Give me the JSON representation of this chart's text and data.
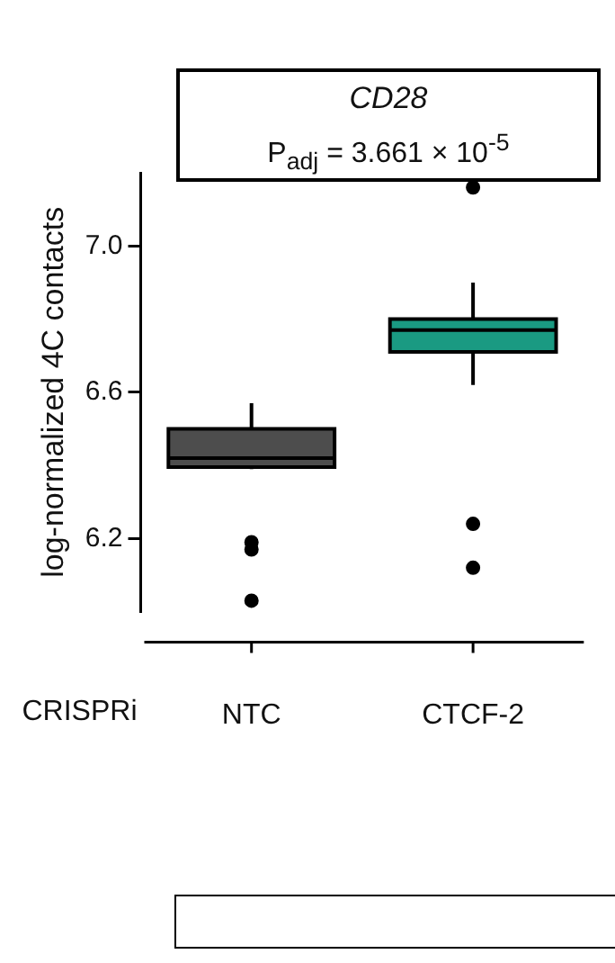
{
  "chart_data": {
    "type": "box",
    "title": "CD28",
    "subtitle": "P$_{adj}$ = 3.661 × 10$^{-5}$",
    "xlabel": "CRISPRi",
    "ylabel": "log-normalized 4C contacts",
    "categories": [
      "NTC",
      "CTCF-2"
    ],
    "colors": [
      "#4d4d4d",
      "#1a9a82"
    ],
    "boxes": [
      {
        "low": 6.39,
        "q1": 6.395,
        "median": 6.42,
        "q3": 6.5,
        "high": 6.57,
        "outliers": [
          6.19,
          6.17,
          6.03
        ]
      },
      {
        "low": 6.62,
        "q1": 6.71,
        "median": 6.77,
        "q3": 6.8,
        "high": 6.9,
        "outliers": [
          7.16,
          6.24,
          6.12
        ]
      }
    ],
    "ylim": [
      6.0,
      7.2
    ],
    "yticks": [
      {
        "value": 6.2,
        "label": "6.2"
      },
      {
        "value": 6.6,
        "label": "6.6"
      },
      {
        "value": 7,
        "label": "7.0"
      }
    ],
    "grid": false,
    "legend": false
  }
}
